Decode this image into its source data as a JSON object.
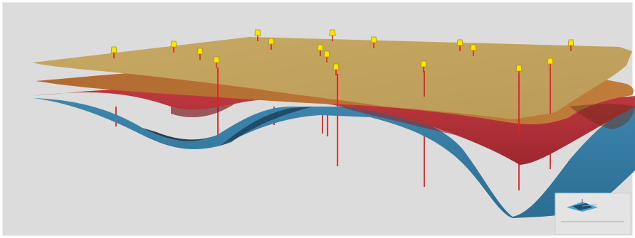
{
  "scene": {
    "background": "#dcdcdc",
    "horizons": [
      {
        "name": "top-horizon",
        "color": "#c3a35f"
      },
      {
        "name": "second-horizon",
        "color": "#b87232"
      },
      {
        "name": "third-horizon",
        "color": "#b63239"
      },
      {
        "name": "base-horizon",
        "color": "#3a7fa5"
      }
    ],
    "well_color": "#e32020",
    "marker_color": "#ffe600"
  },
  "orientation_widget": {
    "icon": "axis-orientation-icon",
    "text_line1": "",
    "text_line2": ""
  }
}
